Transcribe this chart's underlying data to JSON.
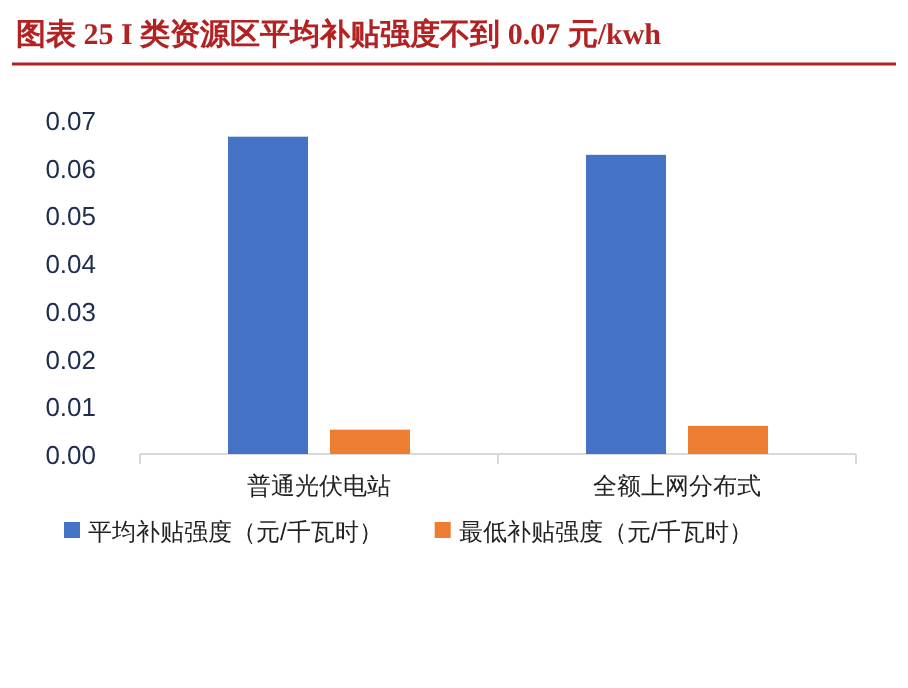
{
  "chart_data": {
    "type": "bar",
    "title": "图表 25   I 类资源区平均补贴强度不到 0.07 元/kwh",
    "categories": [
      "普通光伏电站",
      "全额上网分布式"
    ],
    "series": [
      {
        "name": "平均补贴强度（元/千瓦时）",
        "color": "#4472c4",
        "values": [
          0.0665,
          0.0627
        ]
      },
      {
        "name": "最低补贴强度（元/千瓦时）",
        "color": "#ed7d31",
        "values": [
          0.0051,
          0.0059
        ]
      }
    ],
    "ylim": [
      0,
      0.07
    ],
    "yticks": [
      {
        "value": 0,
        "label": "0.00"
      },
      0.01,
      0.02,
      0.03,
      0.04,
      0.05,
      0.06,
      0.07
    ],
    "grid": false,
    "legend": "bottom"
  }
}
